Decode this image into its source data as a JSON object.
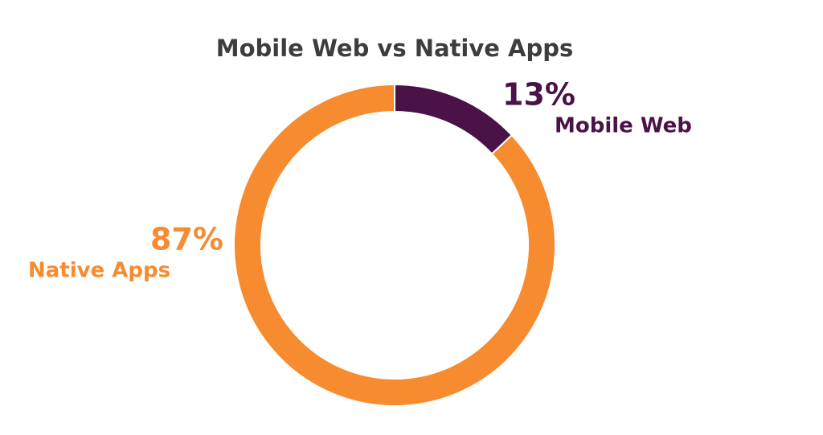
{
  "chart_data": {
    "type": "donut",
    "title": "Mobile Web vs Native Apps",
    "categories": [
      "Mobile Web",
      "Native Apps"
    ],
    "values": [
      13,
      87
    ],
    "value_labels": [
      "13%",
      "87%"
    ],
    "colors": [
      "#4a1246",
      "#f68b2f"
    ]
  }
}
